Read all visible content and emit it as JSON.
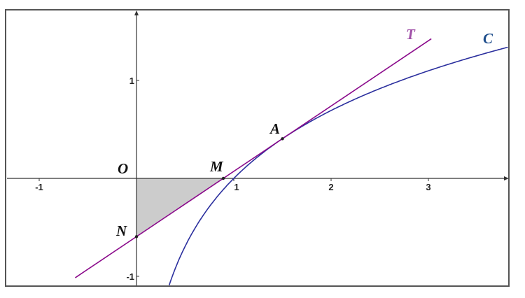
{
  "diagram": {
    "x_range": [
      -1.3,
      3.85
    ],
    "y_range": [
      -1.1,
      1.7
    ],
    "x_ticks": [
      "-1",
      "1",
      "2",
      "3"
    ],
    "y_ticks": [
      "1",
      "-1"
    ],
    "curve": {
      "label": "C",
      "function": "ln(x)",
      "color": "#2b2f9e",
      "label_color": "#1f4e8c"
    },
    "tangent": {
      "label": "T",
      "at_x": 1.5,
      "color": "#8b0a8b",
      "label_color": "#a050a8"
    },
    "points": {
      "O": {
        "label": "O",
        "x": 0,
        "y": 0
      },
      "A": {
        "label": "A",
        "x": 1.5,
        "y": 0.405
      },
      "M": {
        "label": "M",
        "x": 0.892,
        "y": 0
      },
      "N": {
        "label": "N",
        "x": 0,
        "y": -0.595
      }
    },
    "shaded_region": "triangle OMN",
    "shade_color": "#cccccc"
  }
}
